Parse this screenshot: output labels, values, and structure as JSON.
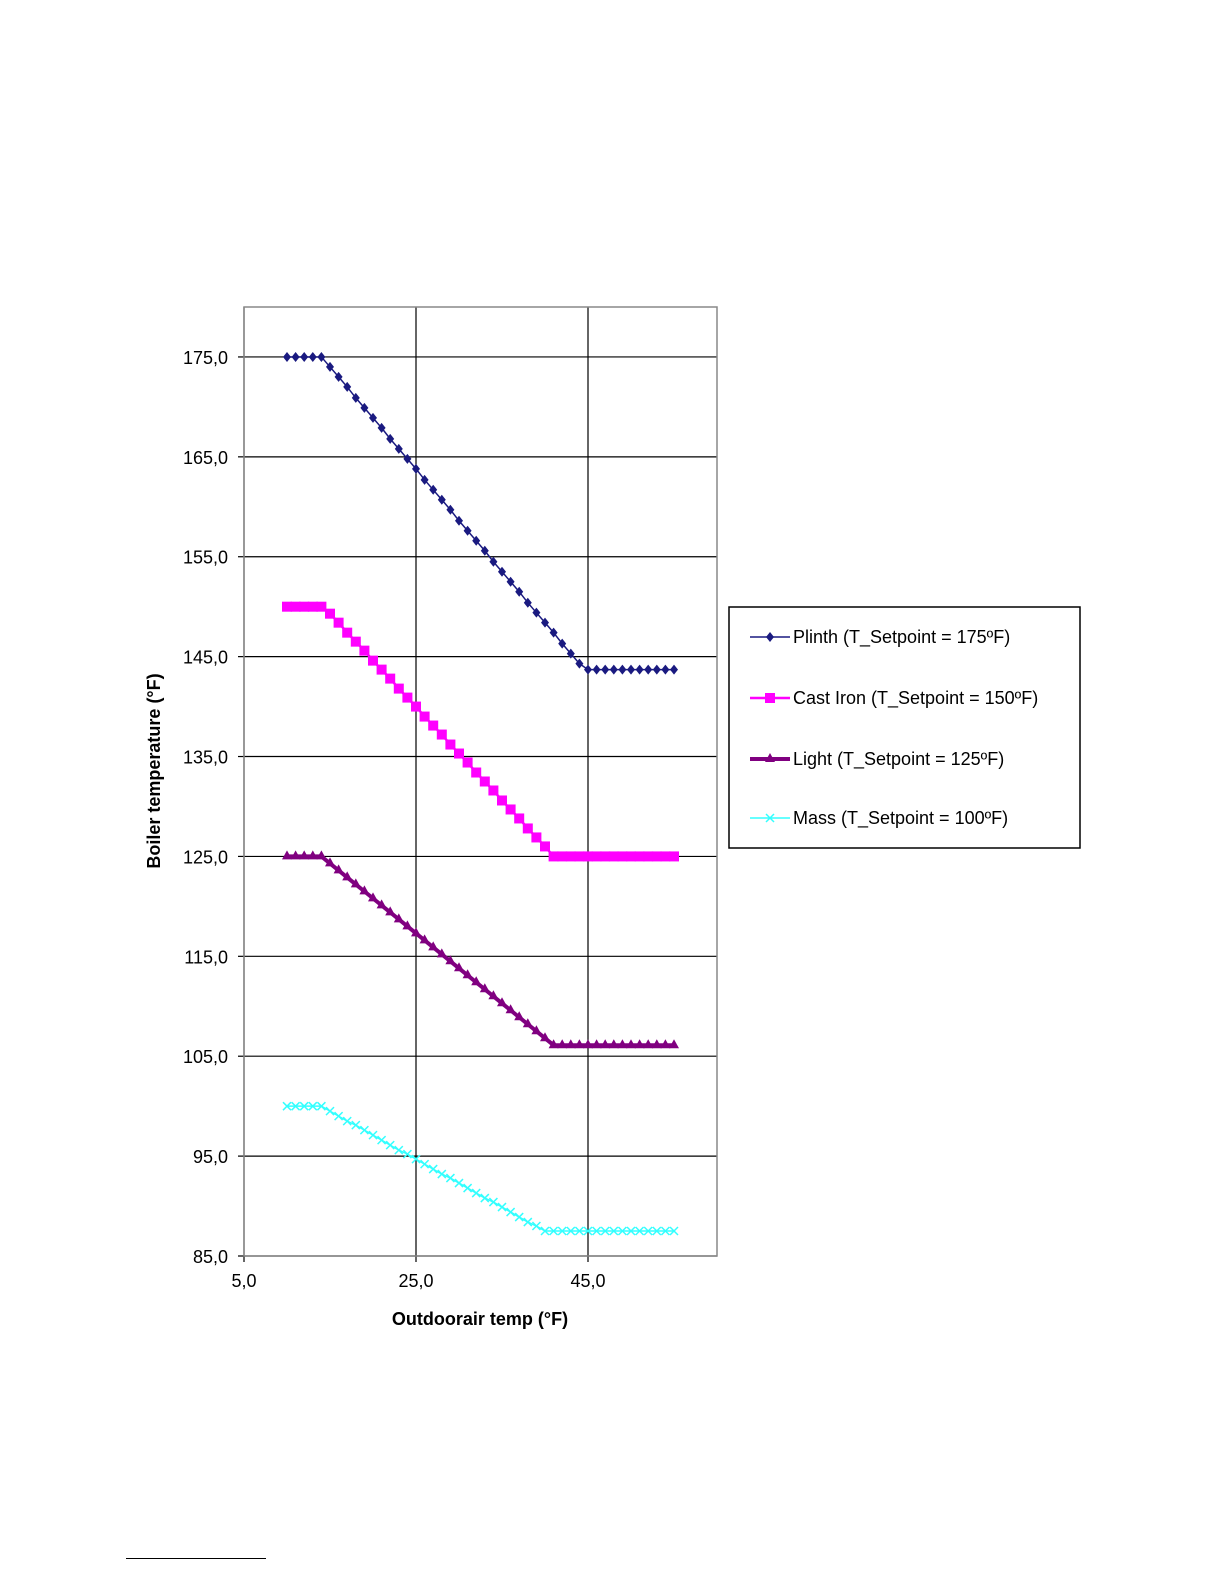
{
  "chart_data": {
    "type": "line",
    "title": "",
    "xlabel": "Outdoorair temp (°F)",
    "ylabel": "Boiler temperature (°F)",
    "xlim": [
      5,
      60
    ],
    "ylim": [
      85,
      180
    ],
    "xticks": [
      5,
      25,
      45
    ],
    "yticks": [
      85,
      95,
      105,
      115,
      125,
      135,
      145,
      155,
      165,
      175
    ],
    "xtick_labels": [
      "5,0",
      "25,0",
      "45,0"
    ],
    "ytick_labels": [
      "85,0",
      "95,0",
      "105,0",
      "115,0",
      "125,0",
      "135,0",
      "145,0",
      "155,0",
      "165,0",
      "175,0"
    ],
    "grid": true,
    "legend_position": "right",
    "x": [
      10,
      11,
      12,
      13,
      14,
      15,
      16,
      17,
      18,
      19,
      20,
      21,
      22,
      23,
      24,
      25,
      26,
      27,
      28,
      29,
      30,
      31,
      32,
      33,
      34,
      35,
      36,
      37,
      38,
      39,
      40,
      41,
      42,
      43,
      44,
      45,
      46,
      47,
      48,
      49,
      50,
      51,
      52,
      53,
      54,
      55
    ],
    "series": [
      {
        "name": "Plinth (T_Setpoint = 175ºF)",
        "color": "#1a1a80",
        "marker": "diamond",
        "values": [
          175.0,
          175.0,
          175.0,
          175.0,
          175.0,
          174.0,
          173.0,
          172.0,
          170.9,
          169.9,
          168.9,
          167.9,
          166.8,
          165.8,
          164.8,
          163.8,
          162.7,
          161.7,
          160.7,
          159.7,
          158.6,
          157.6,
          156.6,
          155.6,
          154.5,
          153.5,
          152.5,
          151.5,
          150.4,
          149.4,
          148.4,
          147.4,
          146.3,
          145.3,
          144.3,
          143.7,
          143.7,
          143.7,
          143.7,
          143.7,
          143.7,
          143.7,
          143.7,
          143.7,
          143.7,
          143.7
        ]
      },
      {
        "name": "Cast Iron (T_Setpoint = 150ºF)",
        "color": "#ff00ff",
        "marker": "square",
        "values": [
          150.0,
          150.0,
          150.0,
          150.0,
          150.0,
          149.3,
          148.4,
          147.4,
          146.5,
          145.6,
          144.6,
          143.7,
          142.8,
          141.8,
          140.9,
          140.0,
          139.0,
          138.1,
          137.2,
          136.2,
          135.3,
          134.4,
          133.4,
          132.5,
          131.6,
          130.6,
          129.7,
          128.8,
          127.8,
          126.9,
          126.0,
          125.0,
          125.0,
          125.0,
          125.0,
          125.0,
          125.0,
          125.0,
          125.0,
          125.0,
          125.0,
          125.0,
          125.0,
          125.0,
          125.0,
          125.0
        ]
      },
      {
        "name": "Light (T_Setpoint = 125ºF)",
        "color": "#800080",
        "marker": "triangle",
        "values": [
          125.0,
          125.0,
          125.0,
          125.0,
          125.0,
          124.3,
          123.6,
          122.9,
          122.2,
          121.5,
          120.8,
          120.1,
          119.4,
          118.7,
          118.0,
          117.3,
          116.6,
          115.9,
          115.2,
          114.5,
          113.8,
          113.1,
          112.4,
          111.7,
          111.0,
          110.3,
          109.6,
          108.9,
          108.2,
          107.5,
          106.8,
          106.1,
          106.1,
          106.1,
          106.1,
          106.1,
          106.1,
          106.1,
          106.1,
          106.1,
          106.1,
          106.1,
          106.1,
          106.1,
          106.1,
          106.1
        ]
      },
      {
        "name": "Mass (T_Setpoint = 100ºF)",
        "color": "#33ffff",
        "marker": "x",
        "values": [
          100.0,
          100.0,
          100.0,
          100.0,
          100.0,
          99.5,
          99.0,
          98.5,
          98.1,
          97.6,
          97.1,
          96.6,
          96.1,
          95.6,
          95.2,
          94.7,
          94.2,
          93.7,
          93.2,
          92.8,
          92.3,
          91.8,
          91.3,
          90.8,
          90.4,
          89.9,
          89.4,
          88.9,
          88.4,
          88.0,
          87.5,
          87.5,
          87.5,
          87.5,
          87.5,
          87.5,
          87.5,
          87.5,
          87.5,
          87.5,
          87.5,
          87.5,
          87.5,
          87.5,
          87.5,
          87.5
        ]
      }
    ]
  }
}
